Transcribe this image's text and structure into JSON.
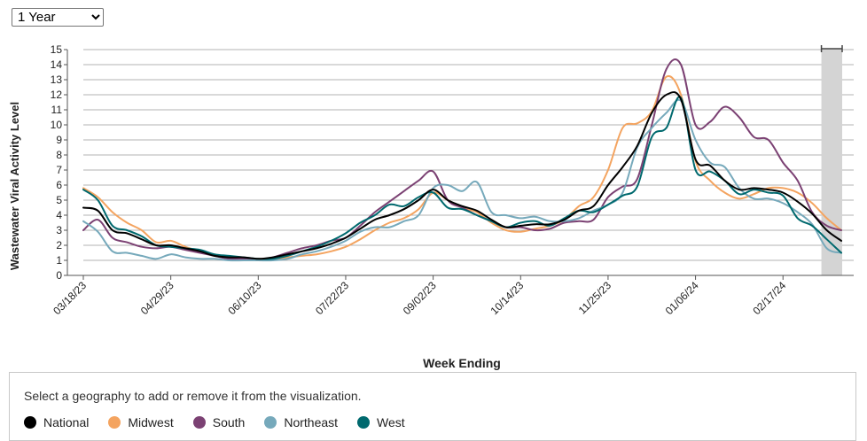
{
  "controls": {
    "range_options": [
      "1 Year"
    ],
    "range_selected": "1 Year"
  },
  "chart_data": {
    "type": "line",
    "ylabel": "Wastewater Viral Activity Level",
    "xlabel": "Week Ending",
    "ylim": [
      0,
      15
    ],
    "yticks": [
      0,
      1,
      2,
      3,
      4,
      5,
      6,
      7,
      8,
      9,
      10,
      11,
      12,
      13,
      14,
      15
    ],
    "grid": true,
    "x": [
      "03/18/23",
      "03/25/23",
      "04/01/23",
      "04/08/23",
      "04/15/23",
      "04/22/23",
      "04/29/23",
      "05/06/23",
      "05/13/23",
      "05/20/23",
      "05/27/23",
      "06/03/23",
      "06/10/23",
      "06/17/23",
      "06/24/23",
      "07/01/23",
      "07/08/23",
      "07/15/23",
      "07/22/23",
      "07/29/23",
      "08/05/23",
      "08/12/23",
      "08/19/23",
      "08/26/23",
      "09/02/23",
      "09/09/23",
      "09/16/23",
      "09/23/23",
      "09/30/23",
      "10/07/23",
      "10/14/23",
      "10/21/23",
      "10/28/23",
      "11/04/23",
      "11/11/23",
      "11/18/23",
      "11/25/23",
      "12/02/23",
      "12/09/23",
      "12/16/23",
      "12/23/23",
      "12/30/23",
      "01/06/24",
      "01/13/24",
      "01/20/24",
      "01/27/24",
      "02/03/24",
      "02/10/24",
      "02/17/24",
      "02/24/24",
      "03/02/24",
      "03/09/24",
      "03/16/24"
    ],
    "xtick_labels": [
      "03/18/23",
      "04/29/23",
      "06/10/23",
      "07/22/23",
      "09/02/23",
      "10/14/23",
      "11/25/23",
      "01/06/24",
      "02/17/24"
    ],
    "shaded_region": {
      "from": "03/09/24",
      "to": "03/16/24",
      "color": "#d4d4d4"
    },
    "series": [
      {
        "name": "Midwest",
        "color": "#f4a460",
        "values": [
          5.8,
          5.2,
          4.2,
          3.5,
          3.0,
          2.2,
          2.3,
          1.9,
          1.6,
          1.3,
          1.2,
          1.1,
          1.1,
          1.1,
          1.2,
          1.3,
          1.4,
          1.6,
          1.9,
          2.4,
          3.0,
          3.5,
          3.8,
          4.4,
          5.5,
          5.0,
          4.5,
          4.2,
          3.5,
          3.0,
          2.9,
          3.1,
          3.3,
          3.7,
          4.6,
          5.2,
          7.0,
          9.8,
          10.1,
          10.9,
          13.2,
          12.0,
          7.6,
          6.3,
          5.5,
          5.1,
          5.4,
          5.8,
          5.8,
          5.5,
          4.8,
          3.8,
          3.0
        ]
      },
      {
        "name": "South",
        "color": "#7b4173",
        "values": [
          3.0,
          3.7,
          2.5,
          2.2,
          1.9,
          1.8,
          1.9,
          1.7,
          1.5,
          1.3,
          1.1,
          1.1,
          1.0,
          1.2,
          1.5,
          1.8,
          2.0,
          2.3,
          2.5,
          3.3,
          4.2,
          4.9,
          5.6,
          6.3,
          6.9,
          5.0,
          4.5,
          4.0,
          3.6,
          3.2,
          3.2,
          3.0,
          3.1,
          3.5,
          3.6,
          3.7,
          5.2,
          5.9,
          6.4,
          10.0,
          13.7,
          14.0,
          10.0,
          10.2,
          11.2,
          10.5,
          9.2,
          9.0,
          7.5,
          6.3,
          4.2,
          3.3,
          3.0
        ]
      },
      {
        "name": "Northeast",
        "color": "#76a9bb",
        "values": [
          3.6,
          2.9,
          1.6,
          1.5,
          1.3,
          1.1,
          1.4,
          1.2,
          1.1,
          1.1,
          1.0,
          1.0,
          1.0,
          1.0,
          1.1,
          1.4,
          1.6,
          1.9,
          2.3,
          2.9,
          3.2,
          3.2,
          3.6,
          4.0,
          5.8,
          6.0,
          5.6,
          6.2,
          4.2,
          4.0,
          3.8,
          3.9,
          3.6,
          3.6,
          3.8,
          4.3,
          4.7,
          5.5,
          8.5,
          9.8,
          10.8,
          11.6,
          9.0,
          7.5,
          7.2,
          5.8,
          5.1,
          5.1,
          4.8,
          4.2,
          3.4,
          1.8,
          1.5
        ]
      },
      {
        "name": "West",
        "color": "#00696e",
        "values": [
          5.7,
          5.0,
          3.3,
          3.0,
          2.6,
          2.0,
          1.9,
          1.8,
          1.7,
          1.4,
          1.3,
          1.2,
          1.1,
          1.1,
          1.3,
          1.6,
          1.9,
          2.3,
          2.8,
          3.5,
          4.0,
          4.7,
          4.6,
          5.2,
          5.5,
          4.5,
          4.4,
          4.0,
          3.6,
          3.2,
          3.5,
          3.6,
          3.3,
          3.8,
          4.3,
          4.2,
          4.7,
          5.3,
          5.9,
          9.2,
          9.8,
          11.8,
          7.0,
          6.9,
          6.3,
          5.4,
          5.7,
          5.5,
          5.3,
          3.8,
          3.3,
          2.4,
          1.5
        ]
      },
      {
        "name": "National",
        "color": "#000000",
        "values": [
          4.5,
          4.3,
          3.0,
          2.8,
          2.4,
          2.0,
          2.0,
          1.8,
          1.6,
          1.3,
          1.2,
          1.2,
          1.1,
          1.2,
          1.4,
          1.6,
          1.8,
          2.1,
          2.5,
          3.1,
          3.7,
          4.0,
          4.4,
          5.0,
          5.7,
          5.0,
          4.6,
          4.3,
          3.7,
          3.2,
          3.3,
          3.4,
          3.4,
          3.7,
          4.3,
          4.6,
          6.0,
          7.2,
          8.6,
          10.8,
          12.0,
          11.7,
          7.7,
          7.3,
          6.3,
          5.7,
          5.8,
          5.7,
          5.5,
          4.9,
          4.1,
          3.0,
          2.3
        ]
      }
    ],
    "legend": {
      "prompt": "Select a geography to add or remove it from the visualization.",
      "items": [
        {
          "name": "National",
          "color": "#000000"
        },
        {
          "name": "Midwest",
          "color": "#f4a460"
        },
        {
          "name": "South",
          "color": "#7b4173"
        },
        {
          "name": "Northeast",
          "color": "#76a9bb"
        },
        {
          "name": "West",
          "color": "#00696e"
        }
      ],
      "placement": "bottom"
    }
  }
}
